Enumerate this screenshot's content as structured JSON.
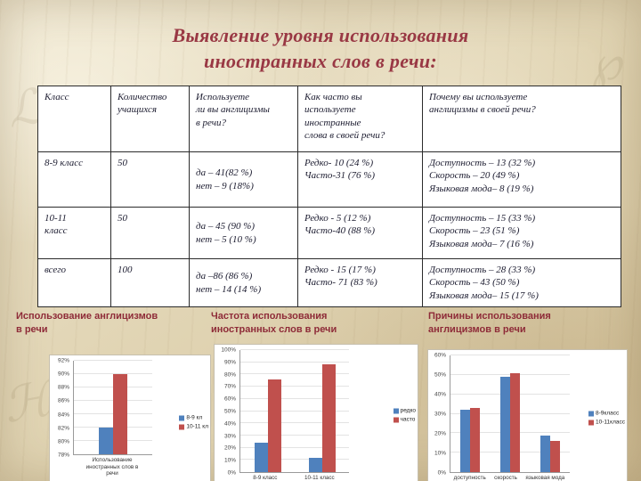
{
  "title": {
    "line1": "Выявление уровня использования",
    "line2": "иностранных слов в речи:"
  },
  "table": {
    "headers": [
      "Класс",
      "Количество\nучащихся",
      "Используете\nли вы англицизмы\nв речи?",
      "Как часто вы\nиспользуете\nиностранные\nслова в своей речи?",
      "Почему вы используете\nанглицизмы в своей речи?"
    ],
    "rows": [
      [
        "8-9 класс",
        "50",
        "да – 41(82 %)\nнет – 9 (18%)",
        "Редко- 10 (24 %)\nЧасто-31 (76 %)",
        "Доступность – 13 (32 %)\nСкорость –  20 (49 %)\nЯзыковая мода– 8 (19 %)"
      ],
      [
        "10-11\nкласс",
        "50",
        "да – 45 (90 %)\nнет – 5 (10 %)",
        "Редко - 5  (12 %)\nЧасто-40 (88 %)",
        "Доступность – 15 (33 %)\nСкорость – 23  (51 %)\nЯзыковая мода– 7 (16 %)"
      ],
      [
        "всего",
        "100",
        "да –86 (86 %)\nнет – 14 (14 %)",
        "Редко - 15 (17 %)\nЧасто- 71 (83 %)",
        "Доступность – 28 (33 %)\nСкорость – 43  (50 %)\nЯзыковая мода– 15 (17 %)"
      ]
    ]
  },
  "sections": [
    {
      "title": "Использование англицизмов\nв речи"
    },
    {
      "title": "Частота использования\nиностранных слов в речи"
    },
    {
      "title": "Причины использования\nанглицизмов  в речи"
    }
  ],
  "colors": {
    "title": "#993844",
    "section": "#8e2b38",
    "bar_blue": "#4f81bd",
    "bar_red": "#c0504d"
  },
  "chart_data": [
    {
      "type": "bar",
      "title": "Использование англицизмов в речи",
      "categories": [
        "Использование иностранных слов в речи"
      ],
      "series": [
        {
          "name": "8-9 кл",
          "color": "#4f81bd",
          "values": [
            82
          ]
        },
        {
          "name": "10-11 кл",
          "color": "#c0504d",
          "values": [
            90
          ]
        }
      ],
      "ylim": [
        78,
        92
      ],
      "ytick": 2,
      "unit": "%",
      "grid": true,
      "legend_position": "right"
    },
    {
      "type": "bar",
      "title": "Частота использования иностранных слов в речи",
      "categories": [
        "8-9 класс",
        "10-11 класс"
      ],
      "series": [
        {
          "name": "редко",
          "color": "#4f81bd",
          "values": [
            24,
            12
          ]
        },
        {
          "name": "часто",
          "color": "#c0504d",
          "values": [
            76,
            88
          ]
        }
      ],
      "ylim": [
        0,
        100
      ],
      "ytick": 10,
      "unit": "%",
      "grid": true,
      "legend_position": "right"
    },
    {
      "type": "bar",
      "title": "Причины использования англицизмов в речи",
      "categories": [
        "доступность",
        "скорость",
        "языковая мода"
      ],
      "series": [
        {
          "name": "8-9класс",
          "color": "#4f81bd",
          "values": [
            32,
            49,
            19
          ]
        },
        {
          "name": "10-11класс",
          "color": "#c0504d",
          "values": [
            33,
            51,
            16
          ]
        }
      ],
      "ylim": [
        0,
        60
      ],
      "ytick": 10,
      "unit": "%",
      "grid": true,
      "legend_position": "right"
    }
  ]
}
